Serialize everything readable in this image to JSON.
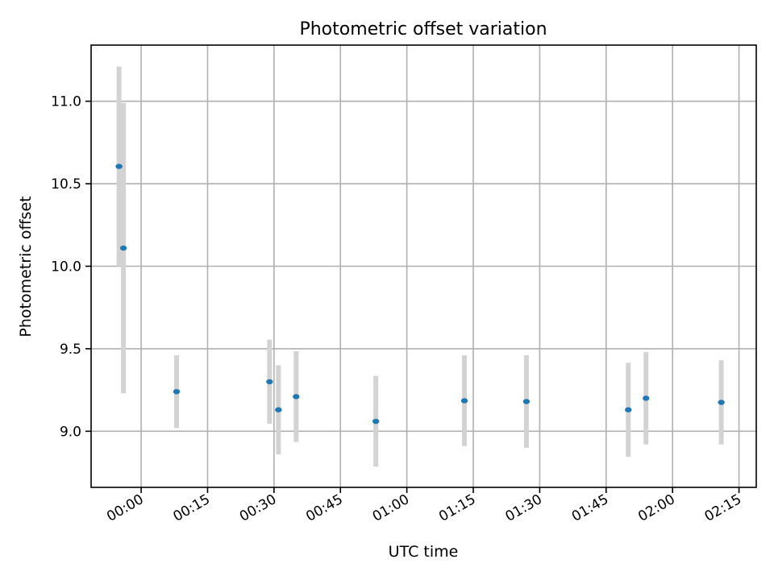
{
  "chart_data": {
    "type": "scatter",
    "title": "Photometric offset variation",
    "xlabel": "UTC time",
    "ylabel": "Photometric offset",
    "x_ticks": [
      "00:00",
      "00:15",
      "00:30",
      "00:45",
      "01:00",
      "01:15",
      "01:30",
      "01:45",
      "02:00",
      "02:15"
    ],
    "y_ticks": [
      "9.0",
      "9.5",
      "10.0",
      "10.5",
      "11.0"
    ],
    "xlim_minutes": [
      -11.3,
      138.9
    ],
    "ylim": [
      8.66,
      11.34
    ],
    "grid": true,
    "series": [
      {
        "points": [
          {
            "time": "23:55",
            "y": 10.605,
            "err": 0.605
          },
          {
            "time": "23:56",
            "y": 10.11,
            "err": 0.88
          },
          {
            "time": "00:08",
            "y": 9.24,
            "err": 0.22
          },
          {
            "time": "00:29",
            "y": 9.3,
            "err": 0.255
          },
          {
            "time": "00:31",
            "y": 9.13,
            "err": 0.27
          },
          {
            "time": "00:35",
            "y": 9.21,
            "err": 0.275
          },
          {
            "time": "00:53",
            "y": 9.06,
            "err": 0.275
          },
          {
            "time": "01:13",
            "y": 9.185,
            "err": 0.275
          },
          {
            "time": "01:27",
            "y": 9.18,
            "err": 0.28
          },
          {
            "time": "01:50",
            "y": 9.13,
            "err": 0.285
          },
          {
            "time": "01:54",
            "y": 9.2,
            "err": 0.28
          },
          {
            "time": "02:11",
            "y": 9.175,
            "err": 0.255
          }
        ]
      }
    ],
    "colors": {
      "point": "#1f77b4",
      "errorbar": "#d3d3d3",
      "grid": "#b0b0b0"
    }
  }
}
